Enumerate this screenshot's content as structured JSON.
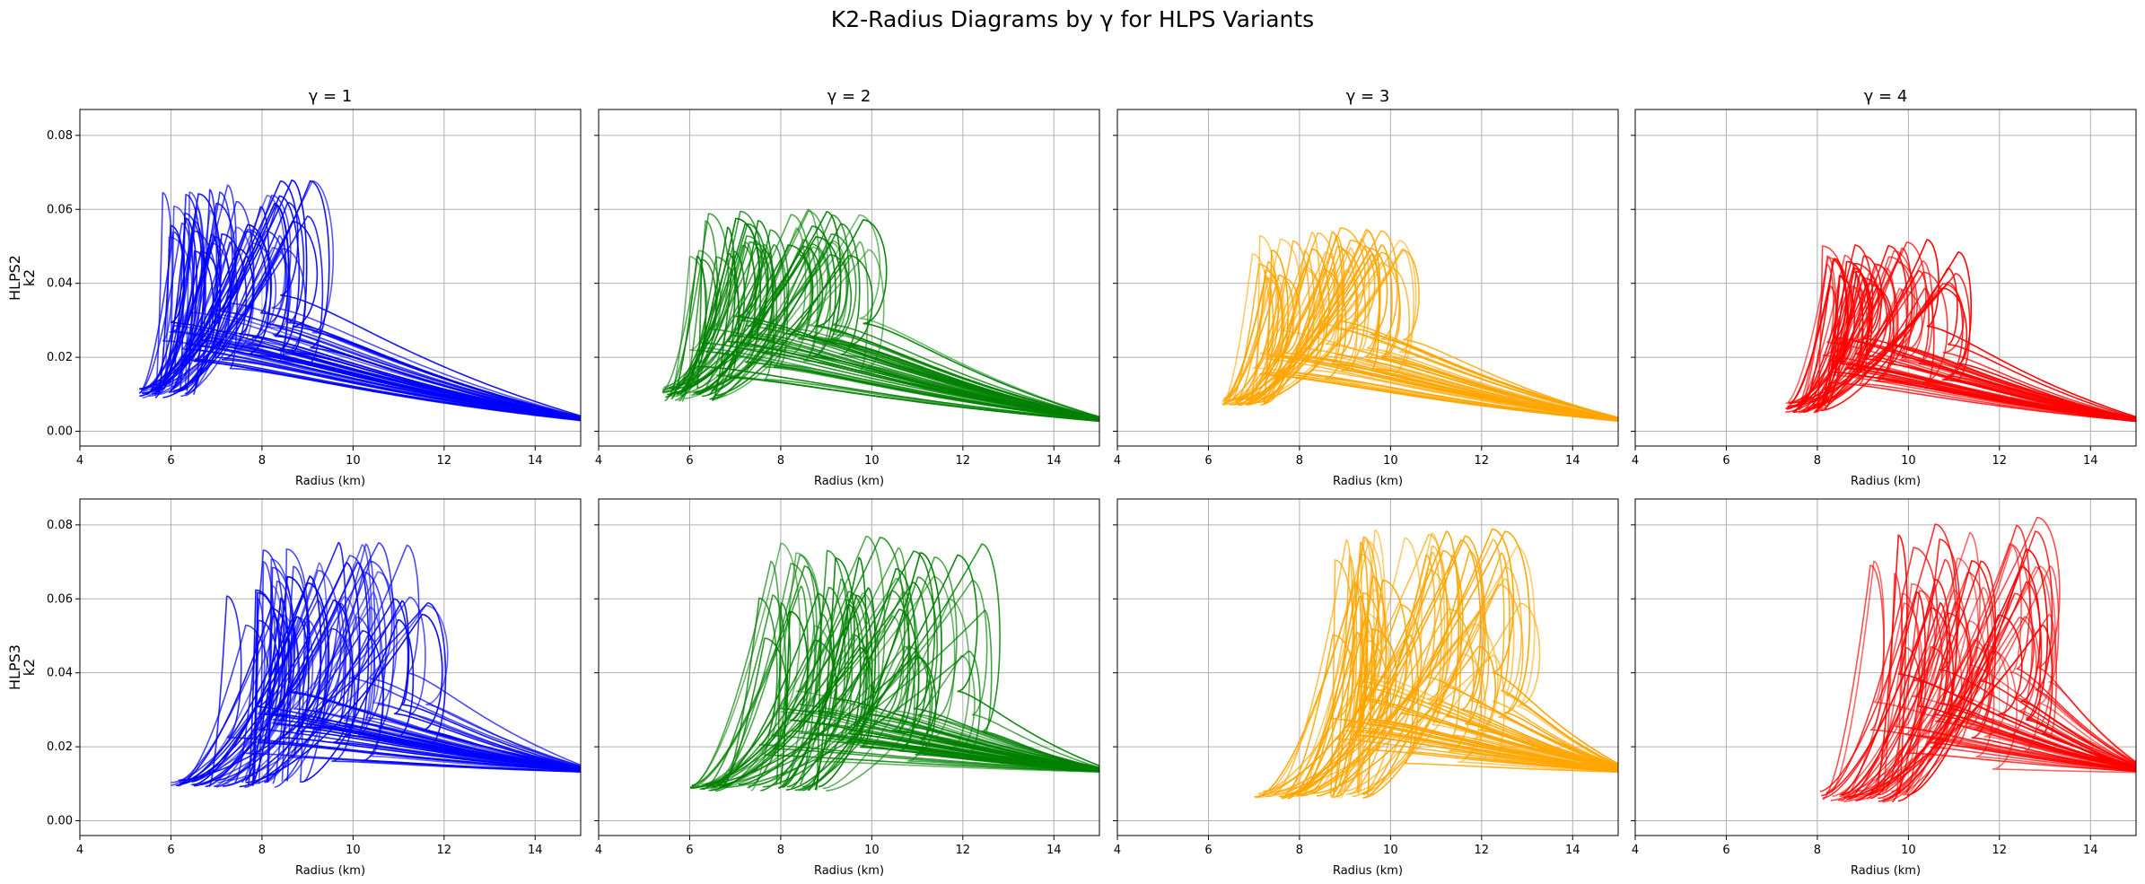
{
  "figure": {
    "title": "K2-Radius Diagrams by γ for HLPS Variants"
  },
  "chart_data": {
    "type": "line",
    "grid": true,
    "xlim": [
      4,
      15
    ],
    "ylim": [
      -0.004,
      0.087
    ],
    "xticks": [
      4,
      6,
      8,
      10,
      12,
      14
    ],
    "yticks": [
      0.0,
      0.02,
      0.04,
      0.06,
      0.08
    ],
    "yticklabels": [
      "0.00",
      "0.02",
      "0.04",
      "0.06",
      "0.08"
    ],
    "xlabel": "Radius (km)",
    "ylabel": "k2",
    "columns": [
      {
        "label": "γ = 1",
        "color": "#0000ff"
      },
      {
        "label": "γ = 2",
        "color": "#008000"
      },
      {
        "label": "γ = 3",
        "color": "#ffa500"
      },
      {
        "label": "γ = 4",
        "color": "#ff0000"
      }
    ],
    "rows": [
      {
        "label": "HLPS2",
        "panels": [
          {
            "r_min": [
              5.3,
              6.5
            ],
            "r_peak": [
              5.0,
              9.0
            ],
            "k_peak": [
              0.04,
              0.068
            ],
            "k_base": [
              0.009,
              0.012
            ],
            "n": 50,
            "tail_end_k": 0.002,
            "converge_r": 9.4
          },
          {
            "r_min": [
              5.4,
              6.6
            ],
            "r_peak": [
              5.6,
              9.7
            ],
            "k_peak": [
              0.04,
              0.06
            ],
            "k_base": [
              0.008,
              0.012
            ],
            "n": 50,
            "tail_end_k": 0.002,
            "converge_r": 10.0
          },
          {
            "r_min": [
              6.3,
              7.3
            ],
            "r_peak": [
              6.4,
              10.3
            ],
            "k_peak": [
              0.035,
              0.055
            ],
            "k_base": [
              0.007,
              0.009
            ],
            "n": 45,
            "tail_end_k": 0.002,
            "converge_r": 10.8
          },
          {
            "r_min": [
              7.3,
              8.2
            ],
            "r_peak": [
              7.4,
              10.9
            ],
            "k_peak": [
              0.032,
              0.052
            ],
            "k_base": [
              0.005,
              0.008
            ],
            "n": 45,
            "tail_end_k": 0.002,
            "converge_r": 11.5
          }
        ]
      },
      {
        "label": "HLPS3",
        "panels": [
          {
            "r_min": [
              6.0,
              9.0
            ],
            "r_peak": [
              6.4,
              11.4
            ],
            "k_peak": [
              0.04,
              0.076
            ],
            "k_base": [
              0.009,
              0.011
            ],
            "n": 55,
            "tail_end_k": 0.013,
            "converge_r": 12.8
          },
          {
            "r_min": [
              6.0,
              9.0
            ],
            "r_peak": [
              6.8,
              12.1
            ],
            "k_peak": [
              0.03,
              0.077
            ],
            "k_base": [
              0.008,
              0.01
            ],
            "n": 55,
            "tail_end_k": 0.013,
            "converge_r": 12.4
          },
          {
            "r_min": [
              7.0,
              9.5
            ],
            "r_peak": [
              7.6,
              12.7
            ],
            "k_peak": [
              0.03,
              0.079
            ],
            "k_base": [
              0.006,
              0.008
            ],
            "n": 55,
            "tail_end_k": 0.013,
            "converge_r": 12.9
          },
          {
            "r_min": [
              8.0,
              10.0
            ],
            "r_peak": [
              8.8,
              13.1
            ],
            "k_peak": [
              0.03,
              0.082
            ],
            "k_base": [
              0.005,
              0.008
            ],
            "n": 50,
            "tail_end_k": 0.013,
            "converge_r": 13.7
          }
        ]
      }
    ]
  }
}
